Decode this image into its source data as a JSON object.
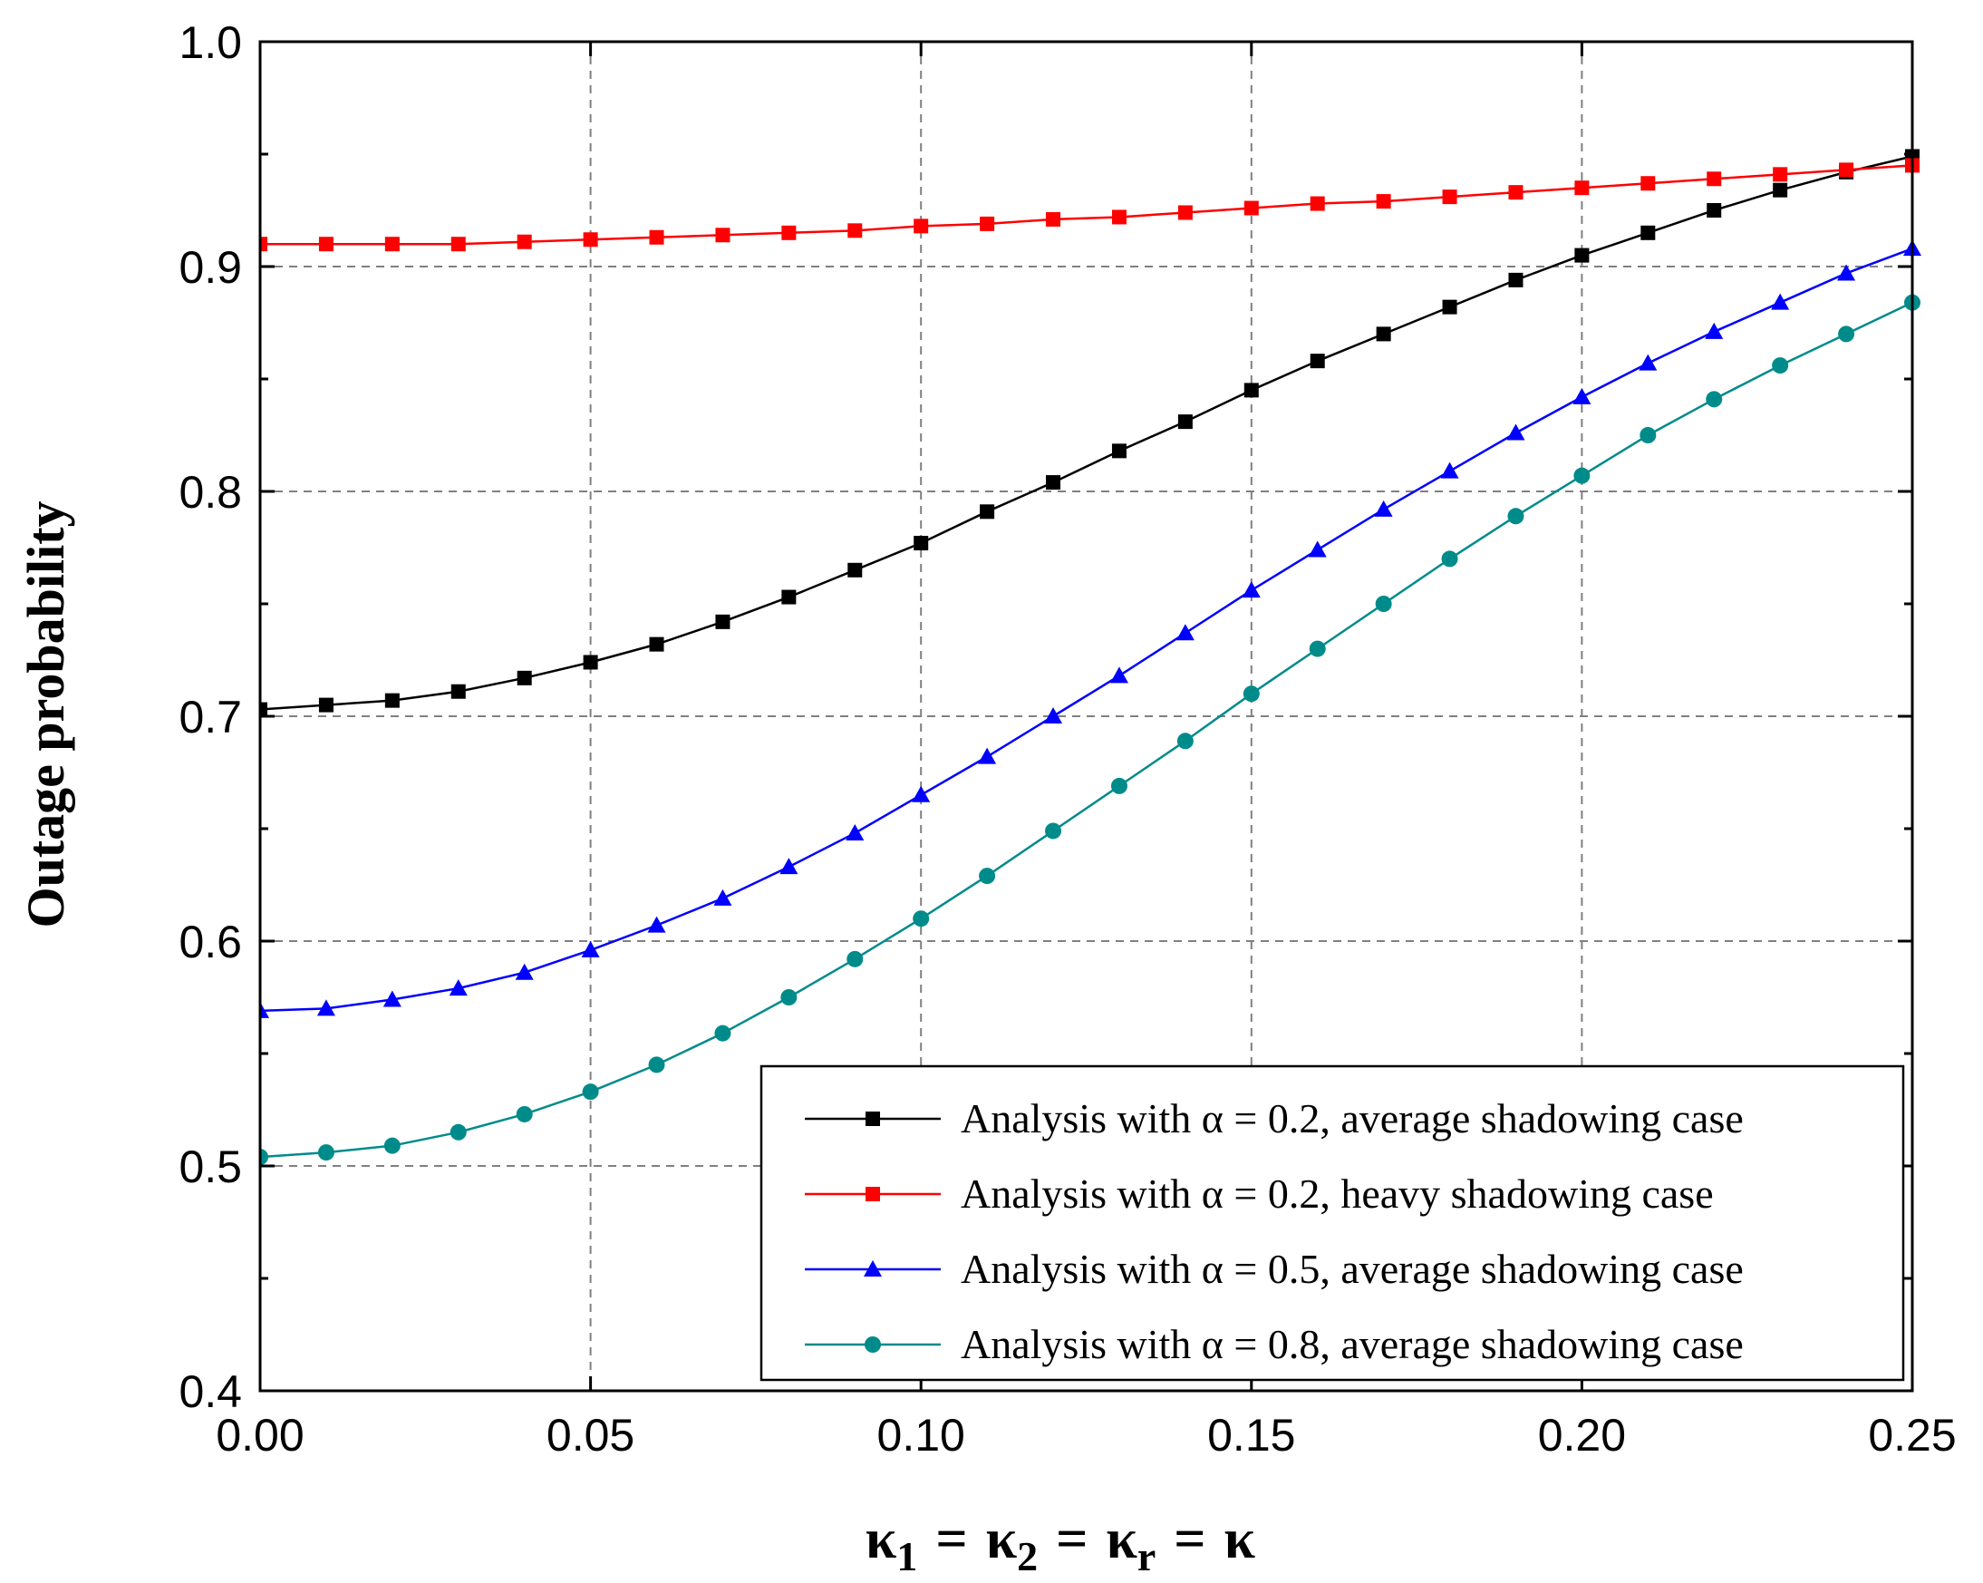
{
  "chart_data": {
    "type": "line",
    "title": "",
    "xlabel": "κ1 = κ2 = κr = κ",
    "xlabel_parts": {
      "k": "κ",
      "sub1": "1",
      "sub2": "2",
      "subr": "r",
      "eq": "="
    },
    "ylabel": "Outage probability",
    "xlim": [
      0,
      0.25
    ],
    "ylim": [
      0.4,
      1.0
    ],
    "xticks": [
      0.0,
      0.05,
      0.1,
      0.15,
      0.2,
      0.25
    ],
    "xtick_labels": [
      "0.00",
      "0.05",
      "0.10",
      "0.15",
      "0.20",
      "0.25"
    ],
    "yticks": [
      0.4,
      0.5,
      0.6,
      0.7,
      0.8,
      0.9,
      1.0
    ],
    "ytick_labels": [
      "0.4",
      "0.5",
      "0.6",
      "0.7",
      "0.8",
      "0.9",
      "1.0"
    ],
    "yminor": [
      0.45,
      0.55,
      0.65,
      0.75,
      0.85,
      0.95
    ],
    "grid": true,
    "legend_position": "bottom-right",
    "x": [
      0.0,
      0.01,
      0.02,
      0.03,
      0.04,
      0.05,
      0.06,
      0.07,
      0.08,
      0.09,
      0.1,
      0.11,
      0.12,
      0.13,
      0.14,
      0.15,
      0.16,
      0.17,
      0.18,
      0.19,
      0.2,
      0.21,
      0.22,
      0.23,
      0.24,
      0.25
    ],
    "series": [
      {
        "name": "Analysis with α = 0.2,  average shadowing case",
        "color": "#000000",
        "marker": "square",
        "values": [
          0.703,
          0.705,
          0.707,
          0.711,
          0.717,
          0.724,
          0.732,
          0.742,
          0.753,
          0.765,
          0.777,
          0.791,
          0.804,
          0.818,
          0.831,
          0.845,
          0.858,
          0.87,
          0.882,
          0.894,
          0.905,
          0.915,
          0.925,
          0.934,
          0.942,
          0.949
        ]
      },
      {
        "name": "Analysis with α = 0.2,  heavy shadowing case",
        "color": "#ff0000",
        "marker": "square",
        "values": [
          0.91,
          0.91,
          0.91,
          0.91,
          0.911,
          0.912,
          0.913,
          0.914,
          0.915,
          0.916,
          0.918,
          0.919,
          0.921,
          0.922,
          0.924,
          0.926,
          0.928,
          0.929,
          0.931,
          0.933,
          0.935,
          0.937,
          0.939,
          0.941,
          0.943,
          0.945
        ]
      },
      {
        "name": "Analysis with α = 0.5,  average shadowing case",
        "color": "#0000ff",
        "marker": "triangle",
        "values": [
          0.569,
          0.57,
          0.574,
          0.579,
          0.586,
          0.596,
          0.607,
          0.619,
          0.633,
          0.648,
          0.665,
          0.682,
          0.7,
          0.718,
          0.737,
          0.756,
          0.774,
          0.792,
          0.809,
          0.826,
          0.842,
          0.857,
          0.871,
          0.884,
          0.897,
          0.908
        ]
      },
      {
        "name": "Analysis with α = 0.8,  average shadowing case",
        "color": "#008b8b",
        "marker": "circle",
        "values": [
          0.504,
          0.506,
          0.509,
          0.515,
          0.523,
          0.533,
          0.545,
          0.559,
          0.575,
          0.592,
          0.61,
          0.629,
          0.649,
          0.669,
          0.689,
          0.71,
          0.73,
          0.75,
          0.77,
          0.789,
          0.807,
          0.825,
          0.841,
          0.856,
          0.87,
          0.884
        ]
      }
    ]
  }
}
